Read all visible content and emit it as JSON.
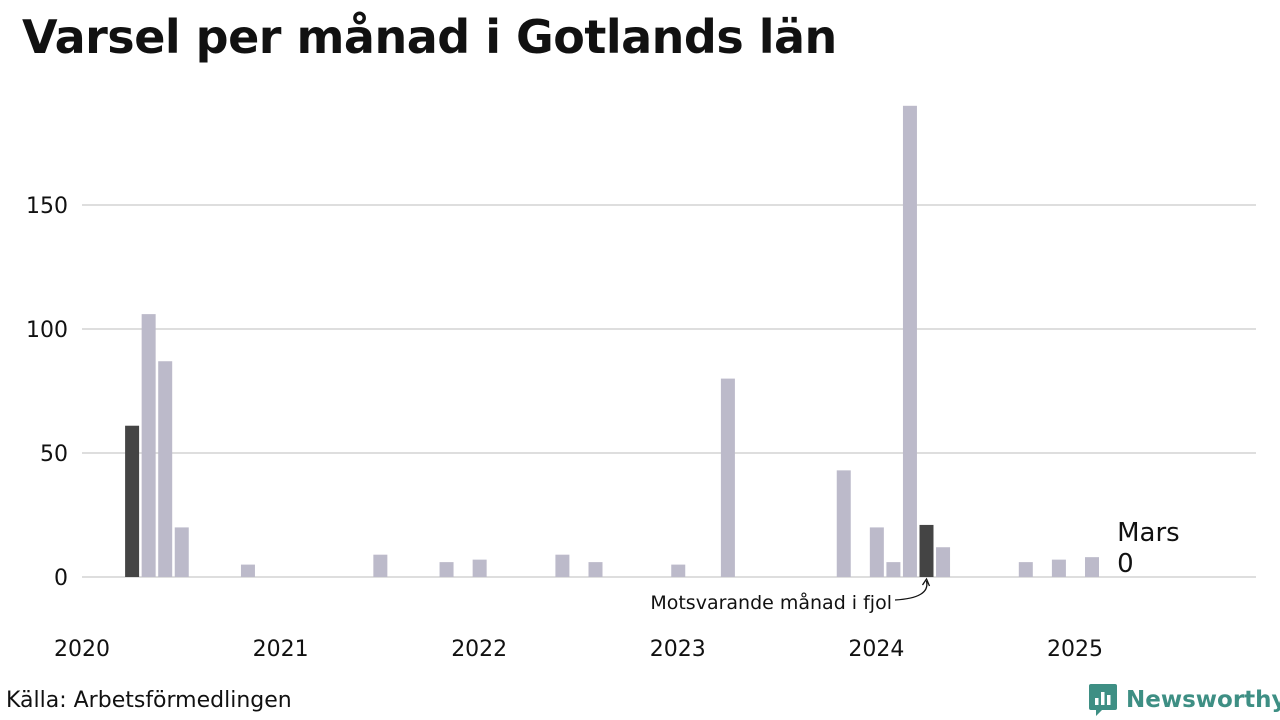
{
  "title": "Varsel per månad i Gotlands län",
  "source": "Källa: Arbetsförmedlingen",
  "brand": {
    "name": "Newsworthy",
    "icon": "newsworthy-logo-icon"
  },
  "colors": {
    "bar": "#bcbaca",
    "highlight": "#444444",
    "grid": "#dedede",
    "brand": "#3e8f84"
  },
  "chart_data": {
    "type": "bar",
    "title": "Varsel per månad i Gotlands län",
    "xlabel": "",
    "ylabel": "",
    "ylim": [
      0,
      190
    ],
    "yticks": [
      0,
      50,
      100,
      150
    ],
    "xticks": [
      "2020",
      "2021",
      "2022",
      "2023",
      "2024",
      "2025"
    ],
    "grid": true,
    "x": [
      "2020-01",
      "2020-02",
      "2020-03",
      "2020-04",
      "2020-05",
      "2020-06",
      "2020-07",
      "2020-08",
      "2020-09",
      "2020-10",
      "2020-11",
      "2020-12",
      "2021-01",
      "2021-02",
      "2021-03",
      "2021-04",
      "2021-05",
      "2021-06",
      "2021-07",
      "2021-08",
      "2021-09",
      "2021-10",
      "2021-11",
      "2021-12",
      "2022-01",
      "2022-02",
      "2022-03",
      "2022-04",
      "2022-05",
      "2022-06",
      "2022-07",
      "2022-08",
      "2022-09",
      "2022-10",
      "2022-11",
      "2022-12",
      "2023-01",
      "2023-02",
      "2023-03",
      "2023-04",
      "2023-05",
      "2023-06",
      "2023-07",
      "2023-08",
      "2023-09",
      "2023-10",
      "2023-11",
      "2023-12",
      "2024-01",
      "2024-02",
      "2024-03",
      "2024-04",
      "2024-05",
      "2024-06",
      "2024-07",
      "2024-08",
      "2024-09",
      "2024-10",
      "2024-11",
      "2024-12",
      "2025-01",
      "2025-02",
      "2025-03"
    ],
    "values": [
      0,
      0,
      61,
      106,
      87,
      20,
      0,
      0,
      0,
      5,
      0,
      0,
      0,
      0,
      0,
      0,
      0,
      9,
      0,
      0,
      0,
      6,
      0,
      7,
      0,
      0,
      0,
      0,
      9,
      0,
      6,
      0,
      0,
      0,
      0,
      5,
      0,
      0,
      80,
      0,
      0,
      0,
      0,
      0,
      0,
      43,
      0,
      20,
      6,
      190,
      21,
      12,
      0,
      0,
      0,
      0,
      6,
      0,
      7,
      0,
      8,
      0,
      0
    ],
    "highlight": [
      "2020-03",
      "2024-03"
    ],
    "current": {
      "month_label": "Mars",
      "value_label": "0"
    },
    "annotation": "Motsvarande månad i fjol"
  }
}
